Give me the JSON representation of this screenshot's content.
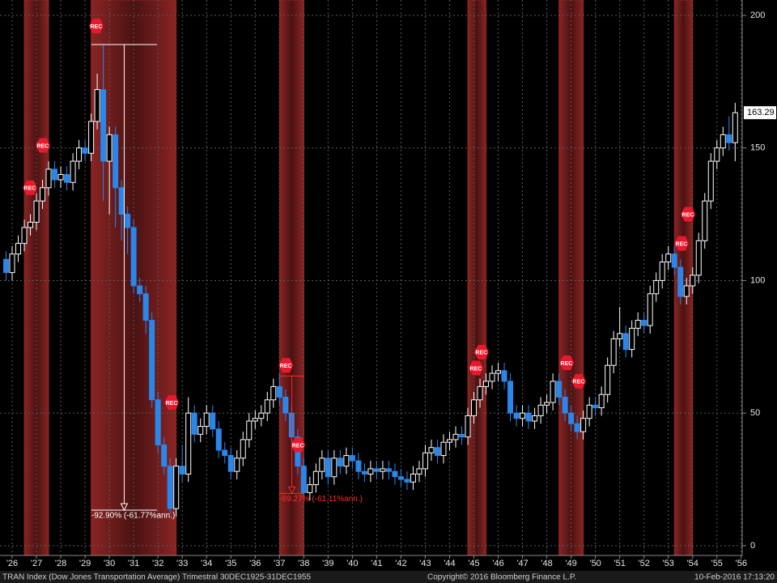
{
  "chart_data": {
    "type": "candlestick",
    "grid": true,
    "up_color": "#ffffff",
    "down_color": "#2a86e8",
    "recession_color": "#8a2424",
    "marker_color": "#e8192c",
    "xlim": [
      1925.5,
      1956.04
    ],
    "xticks": [
      {
        "value": 1926,
        "label": "'26"
      },
      {
        "value": 1927,
        "label": "'27"
      },
      {
        "value": 1928,
        "label": "'28"
      },
      {
        "value": 1929,
        "label": "'29"
      },
      {
        "value": 1930,
        "label": "'30"
      },
      {
        "value": 1931,
        "label": "'31"
      },
      {
        "value": 1932,
        "label": "'32"
      },
      {
        "value": 1933,
        "label": "'33"
      },
      {
        "value": 1934,
        "label": "'34"
      },
      {
        "value": 1935,
        "label": "'35"
      },
      {
        "value": 1936,
        "label": "'36"
      },
      {
        "value": 1937,
        "label": "'37"
      },
      {
        "value": 1938,
        "label": "'38"
      },
      {
        "value": 1939,
        "label": "'39"
      },
      {
        "value": 1940,
        "label": "'40"
      },
      {
        "value": 1941,
        "label": "'41"
      },
      {
        "value": 1942,
        "label": "'42"
      },
      {
        "value": 1943,
        "label": "'43"
      },
      {
        "value": 1944,
        "label": "'44"
      },
      {
        "value": 1945,
        "label": "'45"
      },
      {
        "value": 1946,
        "label": "'46"
      },
      {
        "value": 1947,
        "label": "'47"
      },
      {
        "value": 1948,
        "label": "'48"
      },
      {
        "value": 1949,
        "label": "'49"
      },
      {
        "value": 1950,
        "label": "'50"
      },
      {
        "value": 1951,
        "label": "'51"
      },
      {
        "value": 1952,
        "label": "'52"
      },
      {
        "value": 1953,
        "label": "'53"
      },
      {
        "value": 1954,
        "label": "'54"
      },
      {
        "value": 1955,
        "label": "'55"
      },
      {
        "value": 1956,
        "label": "'56"
      }
    ],
    "ylim": [
      -3.7,
      205.8
    ],
    "yticks": [
      0,
      50,
      100,
      150,
      200
    ],
    "x": [
      1925.75,
      1926,
      1926.25,
      1926.5,
      1926.75,
      1927,
      1927.25,
      1927.5,
      1927.75,
      1928,
      1928.25,
      1928.5,
      1928.75,
      1929,
      1929.25,
      1929.5,
      1929.75,
      1930,
      1930.25,
      1930.5,
      1930.75,
      1931,
      1931.25,
      1931.5,
      1931.75,
      1932,
      1932.25,
      1932.5,
      1932.75,
      1933,
      1933.25,
      1933.5,
      1933.75,
      1934,
      1934.25,
      1934.5,
      1934.75,
      1935,
      1935.25,
      1935.5,
      1935.75,
      1936,
      1936.25,
      1936.5,
      1936.75,
      1937,
      1937.25,
      1937.5,
      1937.75,
      1938,
      1938.25,
      1938.5,
      1938.75,
      1939,
      1939.25,
      1939.5,
      1939.75,
      1940,
      1940.25,
      1940.5,
      1940.75,
      1941,
      1941.25,
      1941.5,
      1941.75,
      1942,
      1942.25,
      1942.5,
      1942.75,
      1943,
      1943.25,
      1943.5,
      1943.75,
      1944,
      1944.25,
      1944.5,
      1944.75,
      1945,
      1945.25,
      1945.5,
      1945.75,
      1946,
      1946.25,
      1946.5,
      1946.75,
      1947,
      1947.25,
      1947.5,
      1947.75,
      1948,
      1948.25,
      1948.5,
      1948.75,
      1949,
      1949.25,
      1949.5,
      1949.75,
      1950,
      1950.25,
      1950.5,
      1950.75,
      1951,
      1951.25,
      1951.5,
      1951.75,
      1952,
      1952.25,
      1952.5,
      1952.75,
      1953,
      1953.25,
      1953.5,
      1953.75,
      1954,
      1954.25,
      1954.5,
      1954.75,
      1955,
      1955.25,
      1955.5,
      1955.75
    ],
    "open": [
      108,
      103,
      110,
      114,
      120,
      122,
      130,
      135,
      142,
      138,
      140,
      137,
      145,
      150,
      148,
      160,
      172,
      145,
      155,
      135,
      125,
      120,
      98,
      95,
      85,
      55,
      38,
      30,
      14,
      30,
      27,
      50,
      42,
      45,
      50,
      44,
      36,
      34,
      28,
      33,
      40,
      47,
      48,
      50,
      55,
      60,
      56,
      50,
      41,
      30,
      20,
      23,
      28,
      33,
      26,
      33,
      30,
      34,
      32,
      28,
      27,
      29,
      28,
      29,
      28,
      26,
      25,
      24,
      27,
      29,
      35,
      37,
      34,
      39,
      40,
      42,
      41,
      49,
      55,
      60,
      62,
      65,
      66,
      62,
      50,
      48,
      50,
      47,
      49,
      53,
      54,
      62,
      56,
      50,
      46,
      43,
      48,
      53,
      52,
      57,
      68,
      78,
      80,
      74,
      82,
      85,
      83,
      95,
      100,
      107,
      110,
      105,
      94,
      98,
      102,
      115,
      130,
      145,
      150,
      155,
      152
    ],
    "high": [
      111,
      113,
      117,
      123,
      125,
      133,
      138,
      145,
      145,
      143,
      143,
      148,
      153,
      153,
      163,
      178,
      189,
      158,
      158,
      138,
      128,
      123,
      101,
      98,
      88,
      58,
      41,
      33,
      33,
      38,
      56,
      53,
      48,
      53,
      53,
      47,
      39,
      37,
      36,
      43,
      50,
      51,
      53,
      58,
      63,
      65,
      59,
      53,
      44,
      33,
      26,
      31,
      36,
      36,
      36,
      36,
      37,
      37,
      35,
      31,
      32,
      32,
      32,
      32,
      31,
      29,
      28,
      30,
      32,
      38,
      40,
      40,
      42,
      43,
      45,
      45,
      52,
      58,
      63,
      65,
      68,
      69,
      69,
      65,
      53,
      53,
      53,
      52,
      56,
      57,
      65,
      65,
      59,
      53,
      49,
      51,
      56,
      56,
      60,
      71,
      81,
      90,
      83,
      85,
      88,
      88,
      98,
      103,
      110,
      113,
      113,
      108,
      101,
      105,
      118,
      133,
      148,
      153,
      158,
      162,
      167
    ],
    "low": [
      100,
      100,
      107,
      111,
      117,
      119,
      127,
      132,
      135,
      135,
      134,
      134,
      142,
      145,
      145,
      157,
      130,
      125,
      120,
      115,
      110,
      95,
      92,
      80,
      52,
      35,
      27,
      12,
      11,
      24,
      24,
      39,
      39,
      42,
      41,
      33,
      31,
      25,
      25,
      30,
      37,
      44,
      45,
      47,
      52,
      53,
      47,
      38,
      27,
      19,
      17,
      20,
      25,
      23,
      23,
      27,
      27,
      29,
      25,
      24,
      24,
      25,
      25,
      25,
      23,
      22,
      21,
      21,
      24,
      26,
      32,
      31,
      31,
      36,
      37,
      38,
      38,
      46,
      52,
      57,
      59,
      62,
      59,
      47,
      45,
      45,
      44,
      44,
      46,
      50,
      51,
      53,
      47,
      43,
      40,
      40,
      45,
      49,
      49,
      54,
      65,
      75,
      71,
      71,
      79,
      80,
      80,
      92,
      97,
      104,
      102,
      91,
      91,
      95,
      99,
      112,
      127,
      142,
      147,
      149,
      145
    ],
    "close": [
      103,
      110,
      114,
      120,
      122,
      130,
      135,
      142,
      138,
      140,
      137,
      145,
      150,
      148,
      160,
      172,
      145,
      155,
      135,
      125,
      120,
      98,
      95,
      85,
      55,
      38,
      30,
      14,
      30,
      27,
      50,
      42,
      45,
      50,
      44,
      36,
      34,
      28,
      33,
      40,
      47,
      48,
      50,
      55,
      60,
      56,
      50,
      41,
      30,
      20,
      23,
      28,
      33,
      26,
      33,
      30,
      34,
      32,
      28,
      27,
      29,
      28,
      29,
      28,
      26,
      25,
      24,
      27,
      29,
      35,
      37,
      34,
      39,
      40,
      42,
      41,
      49,
      55,
      60,
      62,
      65,
      66,
      62,
      50,
      48,
      50,
      47,
      49,
      53,
      54,
      62,
      56,
      50,
      46,
      43,
      48,
      53,
      52,
      57,
      68,
      78,
      80,
      74,
      82,
      85,
      83,
      95,
      100,
      107,
      110,
      105,
      94,
      98,
      102,
      115,
      130,
      145,
      150,
      155,
      152,
      163.29
    ],
    "recessions": [
      [
        1926.5,
        1927.5
      ],
      [
        1929.25,
        1932.75
      ],
      [
        1937,
        1938
      ],
      [
        1944.75,
        1945.5
      ],
      [
        1948.5,
        1949.5
      ],
      [
        1953.25,
        1954
      ]
    ],
    "rec_markers": [
      {
        "label": "REC",
        "x": 1926.73,
        "y": 135
      },
      {
        "label": "REC",
        "x": 1927.26,
        "y": 151
      },
      {
        "label": "REC",
        "x": 1929.46,
        "y": 196
      },
      {
        "label": "REC",
        "x": 1932.56,
        "y": 54
      },
      {
        "label": "REC",
        "x": 1937.26,
        "y": 68
      },
      {
        "label": "REC",
        "x": 1937.76,
        "y": 38
      },
      {
        "label": "REC",
        "x": 1945.08,
        "y": 67
      },
      {
        "label": "REC",
        "x": 1945.31,
        "y": 73
      },
      {
        "label": "REC",
        "x": 1948.81,
        "y": 69
      },
      {
        "label": "REC",
        "x": 1949.31,
        "y": 62
      },
      {
        "label": "REC",
        "x": 1953.54,
        "y": 114
      },
      {
        "label": "REC",
        "x": 1953.81,
        "y": 125
      }
    ],
    "drawdowns": [
      {
        "label": "-92.90% (-61.77%ann.)",
        "color": "#ffffff",
        "x_start": 1929.26,
        "x_end": 1931.96,
        "high": 189,
        "low": 13.4
      },
      {
        "label": "-69.27% (-61.11%ann.)",
        "color": "#ff2a2a",
        "x_start": 1937.0,
        "x_end": 1938.02,
        "high": 64,
        "low": 19.7
      }
    ]
  },
  "footer": {
    "left": "TRAN Index (Dow Jones Transportation Average)  Trimestral 30DEC1925-31DEC1955",
    "center": "Copyright© 2016 Bloomberg Finance L.P.",
    "right": "10-Feb-2016 17:13:20"
  }
}
